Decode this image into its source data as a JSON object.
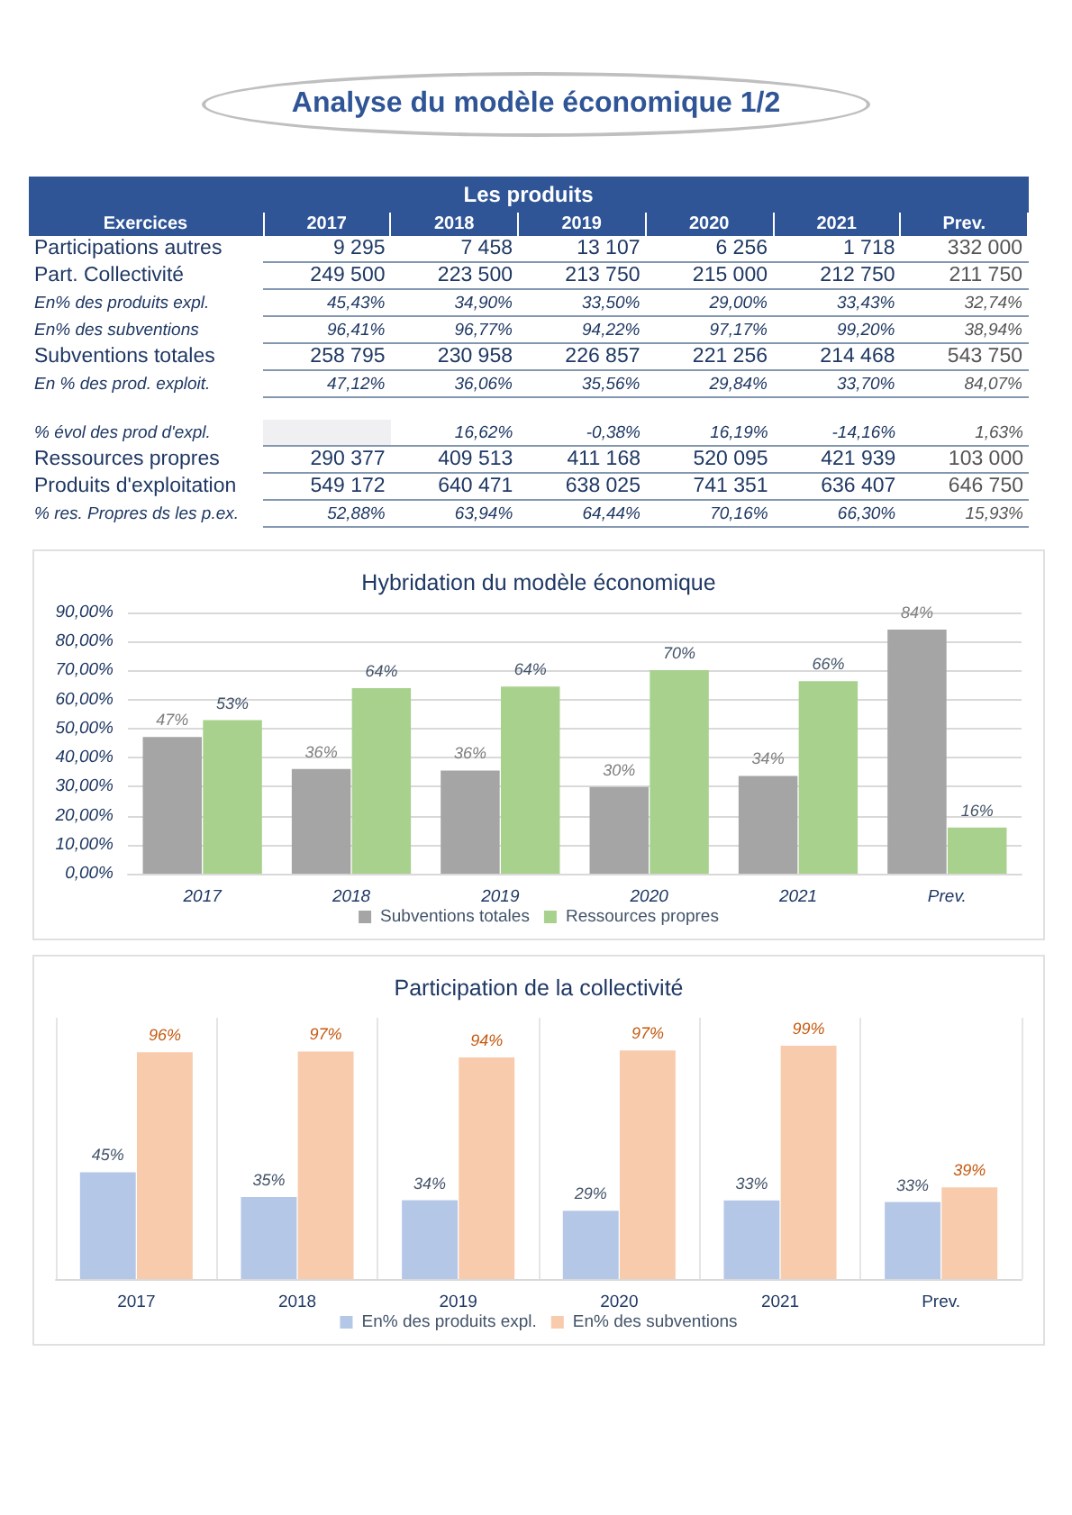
{
  "chart_data": [
    {
      "type": "heatmap",
      "title": "Analyse du modèle économique 1/2",
      "subtitle": "Les produits",
      "ylabel": "Exercices",
      "categories": [
        "2017",
        "2018",
        "2019",
        "2020",
        "2021",
        "Prev."
      ],
      "y_categories": [
        "Participations autres",
        "Part.  Collectivité",
        "En% des produits expl.",
        "En% des subventions",
        "Subventions totales",
        "En % des prod. exploit."
      ],
      "cells": [
        [
          9295,
          7458,
          13107,
          6256,
          1718,
          332000
        ],
        [
          249500,
          223500,
          213750,
          215000,
          212750,
          211750
        ],
        [
          45.43,
          34.9,
          33.5,
          29.0,
          33.43,
          32.74
        ],
        [
          96.41,
          96.77,
          94.22,
          97.17,
          99.2,
          38.94
        ],
        [
          258795,
          230958,
          226857,
          221256,
          214468,
          543750
        ],
        [
          47.12,
          36.06,
          35.56,
          29.84,
          33.7,
          84.07
        ]
      ],
      "cell_labels": [
        [
          "9 295",
          "7 458",
          "13 107",
          "6 256",
          "1 718",
          "332 000"
        ],
        [
          "249 500",
          "223 500",
          "213 750",
          "215 000",
          "212 750",
          "211 750"
        ],
        [
          "45,43%",
          "34,90%",
          "33,50%",
          "29,00%",
          "33,43%",
          "32,74%"
        ],
        [
          "96,41%",
          "96,77%",
          "94,22%",
          "97,17%",
          "99,20%",
          "38,94%"
        ],
        [
          "258 795",
          "230 958",
          "226 857",
          "221 256",
          "214 468",
          "543 750"
        ],
        [
          "47,12%",
          "36,06%",
          "35,56%",
          "29,84%",
          "33,70%",
          "84,07%"
        ]
      ]
    },
    {
      "type": "heatmap",
      "categories": [
        null,
        null,
        null,
        null,
        null,
        null
      ],
      "y_categories": [
        "% évol des prod d'expl.",
        "Ressources propres",
        "Produits d'exploitation",
        "% res. Propres ds les p.ex."
      ],
      "cells": [
        [
          null,
          16.62,
          -0.38,
          16.19,
          -14.16,
          1.63
        ],
        [
          290377,
          409513,
          411168,
          520095,
          421939,
          103000
        ],
        [
          549172,
          640471,
          638025,
          741351,
          636407,
          646750
        ],
        [
          52.88,
          63.94,
          64.44,
          70.16,
          66.3,
          15.93
        ]
      ],
      "cell_labels": [
        [
          null,
          "16,62%",
          "-0,38%",
          "16,19%",
          "-14,16%",
          "1,63%"
        ],
        [
          "290 377",
          "409 513",
          "411 168",
          "520 095",
          "421 939",
          "103 000"
        ],
        [
          "549 172",
          "640 471",
          "638 025",
          "741 351",
          "636 407",
          "646 750"
        ],
        [
          "52,88%",
          "63,94%",
          "64,44%",
          "70,16%",
          "66,30%",
          "15,93%"
        ]
      ]
    },
    {
      "type": "bar",
      "title": "Hybridation du modèle économique",
      "categories": [
        "2017",
        "2018",
        "2019",
        "2020",
        "2021",
        "Prev."
      ],
      "series": [
        {
          "name": "Subventions totales",
          "color": "#a5a5a5",
          "values": [
            47.12,
            36.06,
            35.56,
            29.84,
            33.7,
            84.07
          ],
          "value_labels": [
            "47%",
            "36%",
            "36%",
            "30%",
            "34%",
            "84%"
          ]
        },
        {
          "name": "Ressources propres",
          "color": "#a9d18e",
          "values": [
            52.88,
            63.94,
            64.44,
            70.16,
            66.3,
            15.93
          ],
          "value_labels": [
            "53%",
            "64%",
            "64%",
            "70%",
            "66%",
            "16%"
          ]
        }
      ],
      "ylim": [
        0,
        90
      ],
      "yticks": [
        {
          "value": 0,
          "label": "0,00%"
        },
        {
          "value": 10,
          "label": "10,00%"
        },
        {
          "value": 20,
          "label": "20,00%"
        },
        {
          "value": 30,
          "label": "30,00%"
        },
        {
          "value": 40,
          "label": "40,00%"
        },
        {
          "value": 50,
          "label": "50,00%"
        },
        {
          "value": 60,
          "label": "60,00%"
        },
        {
          "value": 70,
          "label": "70,00%"
        },
        {
          "value": 80,
          "label": "80,00%"
        },
        {
          "value": 90,
          "label": "90,00%"
        }
      ],
      "grid": "y",
      "legend": "bottom"
    },
    {
      "type": "bar",
      "title": "Participation de la collectivité",
      "categories": [
        "2017",
        "2018",
        "2019",
        "2020",
        "2021",
        "Prev."
      ],
      "series": [
        {
          "name": "En% des produits expl.",
          "color": "#b4c7e7",
          "values": [
            45.43,
            34.9,
            33.5,
            29.0,
            33.43,
            32.74
          ],
          "value_labels": [
            "45%",
            "35%",
            "34%",
            "29%",
            "33%",
            "33%"
          ]
        },
        {
          "name": "En% des subventions",
          "color": "#f8cbad",
          "values": [
            96.41,
            96.77,
            94.22,
            97.17,
            99.2,
            38.94
          ],
          "value_labels": [
            "96%",
            "97%",
            "94%",
            "97%",
            "99%",
            "39%"
          ]
        }
      ],
      "grid": "x",
      "legend": "bottom",
      "tick_labels": "x"
    }
  ]
}
